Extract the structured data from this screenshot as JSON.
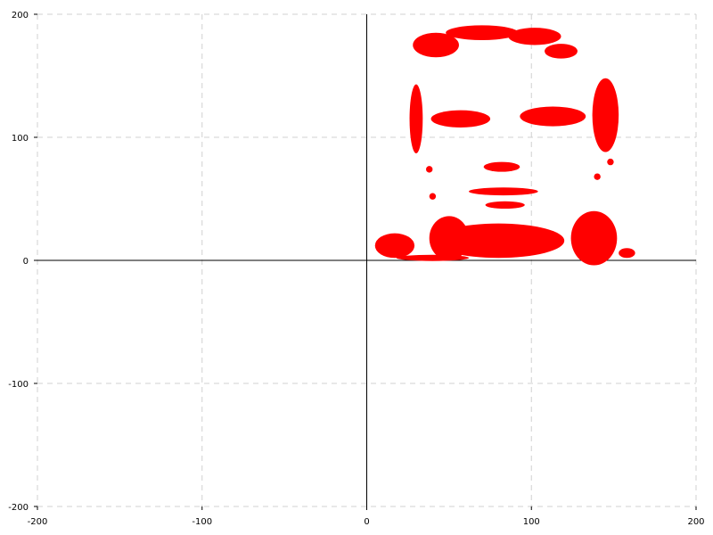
{
  "chart_data": {
    "type": "scatter",
    "title": "",
    "xlabel": "",
    "ylabel": "",
    "xlim": [
      -200,
      200
    ],
    "ylim": [
      -200,
      200
    ],
    "x_ticks": [
      -200,
      -100,
      0,
      100,
      200
    ],
    "y_ticks": [
      200,
      100,
      0,
      -100,
      -200
    ],
    "x_tick_labels": [
      "-200",
      "-100",
      "0",
      "100",
      "200"
    ],
    "y_tick_labels": [
      "200",
      "100",
      "0",
      "-100",
      "-200"
    ],
    "grid": true,
    "grid_style": "dashed",
    "axes_through_origin": true,
    "legend": "none",
    "series": [
      {
        "color": "#ff0000",
        "shapes": {
          "ellipses": [
            [
              30,
              115,
              4,
              28
            ],
            [
              42,
              175,
              14,
              10
            ],
            [
              70,
              185,
              22,
              6
            ],
            [
              102,
              182,
              16,
              7
            ],
            [
              118,
              170,
              10,
              6
            ],
            [
              145,
              118,
              8,
              30
            ],
            [
              57,
              115,
              18,
              7
            ],
            [
              113,
              117,
              20,
              8
            ],
            [
              82,
              76,
              11,
              4
            ],
            [
              83,
              56,
              21,
              3.2
            ],
            [
              84,
              45,
              12,
              3
            ],
            [
              80,
              16,
              40,
              14
            ],
            [
              50,
              18,
              12,
              18
            ],
            [
              138,
              18,
              14,
              22
            ],
            [
              17,
              12,
              12,
              10
            ],
            [
              40,
              2,
              22,
              2.5
            ],
            [
              158,
              6,
              5,
              4
            ]
          ],
          "circles": [
            [
              38,
              74,
              2
            ],
            [
              40,
              52,
              2
            ],
            [
              140,
              68,
              2
            ],
            [
              44,
              170,
              3
            ],
            [
              148,
              80,
              2
            ]
          ]
        }
      }
    ]
  }
}
